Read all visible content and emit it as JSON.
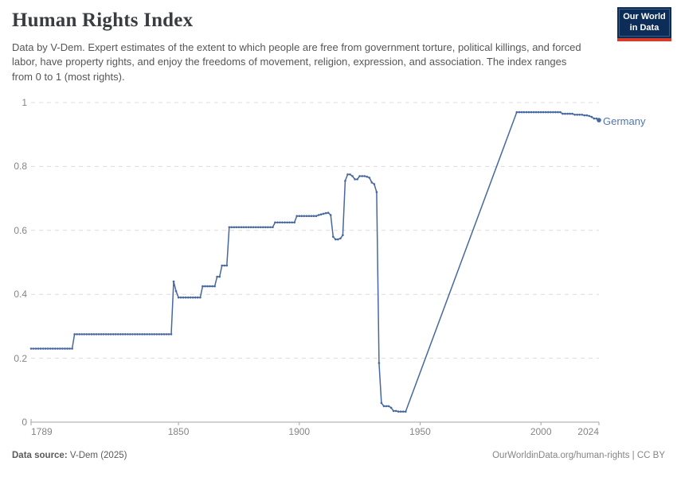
{
  "header": {
    "title": "Human Rights Index",
    "subtitle": "Data by V-Dem. Expert estimates of the extent to which people are free from government torture, political killings, and forced labor, have property rights, and enjoy the freedoms of movement, religion, expression, and association. The index ranges from 0 to 1 (most rights).",
    "logo": {
      "line1": "Our World",
      "line2": "in Data"
    }
  },
  "footer": {
    "source_label": "Data source:",
    "source_value": " V-Dem (2025)",
    "link": "OurWorldinData.org/human-rights | CC BY"
  },
  "colors": {
    "line": "#4668a0",
    "entity_label": "#5674a8",
    "logo_bg": "#0d2d59",
    "logo_red": "#d93b2b",
    "gridline": "#dcdcdc",
    "axis": "#a3a3a3",
    "tick_text": "#858585"
  },
  "chart_data": {
    "type": "line",
    "title": "Human Rights Index",
    "xlabel": "",
    "ylabel": "",
    "x_range": [
      1789,
      2024
    ],
    "y_range": [
      0,
      1
    ],
    "x_ticks": [
      1789,
      1850,
      1900,
      1950,
      2000,
      2024
    ],
    "y_ticks": [
      0,
      0.2,
      0.4,
      0.6,
      0.8,
      1
    ],
    "grid": true,
    "legend_position": "end-of-line",
    "entity_label": "Germany",
    "data_gaps": [
      [
        1945,
        1989
      ]
    ],
    "series": [
      {
        "name": "Germany",
        "color": "#4668a0",
        "segments": [
          {
            "from": 1789,
            "to": 1806,
            "value": 0.23
          },
          {
            "from": 1807,
            "to": 1847,
            "value": 0.275
          },
          {
            "from": 1848,
            "to": 1848,
            "value": 0.44
          },
          {
            "from": 1849,
            "to": 1849,
            "value": 0.41
          },
          {
            "from": 1850,
            "to": 1859,
            "value": 0.39
          },
          {
            "from": 1860,
            "to": 1865,
            "value": 0.425
          },
          {
            "from": 1866,
            "to": 1867,
            "value": 0.455
          },
          {
            "from": 1868,
            "to": 1870,
            "value": 0.49
          },
          {
            "from": 1871,
            "to": 1889,
            "value": 0.61
          },
          {
            "from": 1890,
            "to": 1898,
            "value": 0.625
          },
          {
            "from": 1899,
            "to": 1907,
            "value": 0.645
          },
          {
            "from": 1908,
            "to": 1908,
            "value": 0.648
          },
          {
            "from": 1909,
            "to": 1909,
            "value": 0.65
          },
          {
            "from": 1910,
            "to": 1910,
            "value": 0.652
          },
          {
            "from": 1911,
            "to": 1911,
            "value": 0.654
          },
          {
            "from": 1912,
            "to": 1912,
            "value": 0.655
          },
          {
            "from": 1913,
            "to": 1913,
            "value": 0.648
          },
          {
            "from": 1914,
            "to": 1914,
            "value": 0.58
          },
          {
            "from": 1915,
            "to": 1916,
            "value": 0.572
          },
          {
            "from": 1917,
            "to": 1917,
            "value": 0.575
          },
          {
            "from": 1918,
            "to": 1918,
            "value": 0.585
          },
          {
            "from": 1919,
            "to": 1919,
            "value": 0.755
          },
          {
            "from": 1920,
            "to": 1921,
            "value": 0.775
          },
          {
            "from": 1922,
            "to": 1922,
            "value": 0.77
          },
          {
            "from": 1923,
            "to": 1924,
            "value": 0.76
          },
          {
            "from": 1925,
            "to": 1927,
            "value": 0.77
          },
          {
            "from": 1928,
            "to": 1928,
            "value": 0.768
          },
          {
            "from": 1929,
            "to": 1929,
            "value": 0.765
          },
          {
            "from": 1930,
            "to": 1930,
            "value": 0.75
          },
          {
            "from": 1931,
            "to": 1931,
            "value": 0.745
          },
          {
            "from": 1932,
            "to": 1932,
            "value": 0.72
          },
          {
            "from": 1933,
            "to": 1933,
            "value": 0.185
          },
          {
            "from": 1934,
            "to": 1934,
            "value": 0.06
          },
          {
            "from": 1935,
            "to": 1937,
            "value": 0.05
          },
          {
            "from": 1938,
            "to": 1938,
            "value": 0.045
          },
          {
            "from": 1939,
            "to": 1940,
            "value": 0.035
          },
          {
            "from": 1941,
            "to": 1944,
            "value": 0.033
          },
          {
            "from": 1990,
            "to": 2008,
            "value": 0.97
          },
          {
            "from": 2009,
            "to": 2013,
            "value": 0.965
          },
          {
            "from": 2014,
            "to": 2017,
            "value": 0.962
          },
          {
            "from": 2018,
            "to": 2019,
            "value": 0.96
          },
          {
            "from": 2020,
            "to": 2020,
            "value": 0.958
          },
          {
            "from": 2021,
            "to": 2021,
            "value": 0.955
          },
          {
            "from": 2022,
            "to": 2023,
            "value": 0.95
          },
          {
            "from": 2024,
            "to": 2024,
            "value": 0.945
          }
        ]
      }
    ]
  }
}
